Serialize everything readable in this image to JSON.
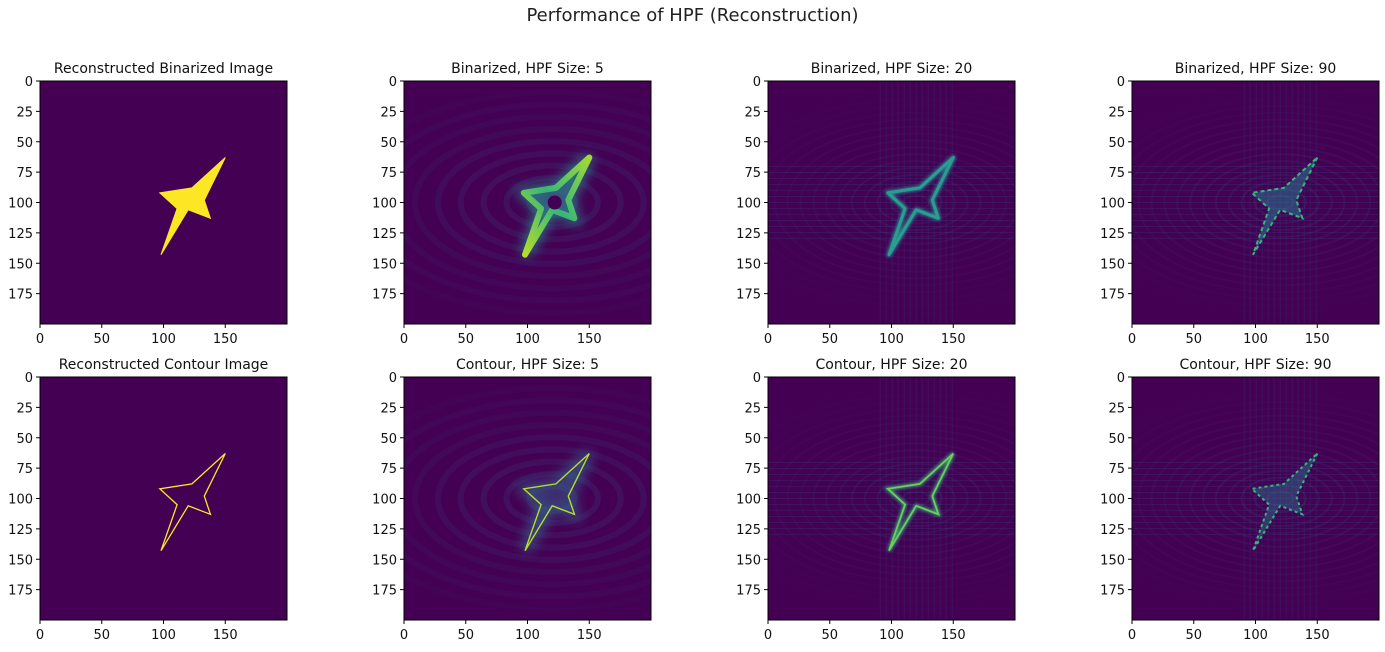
{
  "figure": {
    "suptitle": "Performance of HPF (Reconstruction)",
    "colormap": "viridis",
    "background_color": "#440154"
  },
  "chart_data": [
    {
      "type": "heatmap",
      "title": "Reconstructed Binarized Image",
      "variant": "binarized",
      "hpf_size": null,
      "xticks": [
        0,
        50,
        100,
        150
      ],
      "yticks": [
        0,
        25,
        50,
        75,
        100,
        125,
        150,
        175
      ],
      "xlim": [
        0,
        200
      ],
      "ylim": [
        200,
        0
      ],
      "shape_vertices": [
        [
          150,
          63
        ],
        [
          133,
          98
        ],
        [
          138,
          113
        ],
        [
          120,
          106
        ],
        [
          98,
          143
        ],
        [
          111,
          105
        ],
        [
          97,
          92
        ],
        [
          123,
          88
        ]
      ]
    },
    {
      "type": "heatmap",
      "title": "Binarized, HPF Size: 5",
      "variant": "binarized",
      "hpf_size": 5,
      "xticks": [
        0,
        50,
        100,
        150
      ],
      "yticks": [
        0,
        25,
        50,
        75,
        100,
        125,
        150,
        175
      ],
      "xlim": [
        0,
        200
      ],
      "ylim": [
        200,
        0
      ],
      "shape_vertices": [
        [
          150,
          63
        ],
        [
          133,
          98
        ],
        [
          138,
          113
        ],
        [
          120,
          106
        ],
        [
          98,
          143
        ],
        [
          111,
          105
        ],
        [
          97,
          92
        ],
        [
          123,
          88
        ]
      ]
    },
    {
      "type": "heatmap",
      "title": "Binarized, HPF Size: 20",
      "variant": "binarized",
      "hpf_size": 20,
      "xticks": [
        0,
        50,
        100,
        150
      ],
      "yticks": [
        0,
        25,
        50,
        75,
        100,
        125,
        150,
        175
      ],
      "xlim": [
        0,
        200
      ],
      "ylim": [
        200,
        0
      ],
      "shape_vertices": [
        [
          150,
          63
        ],
        [
          133,
          98
        ],
        [
          138,
          113
        ],
        [
          120,
          106
        ],
        [
          98,
          143
        ],
        [
          111,
          105
        ],
        [
          97,
          92
        ],
        [
          123,
          88
        ]
      ]
    },
    {
      "type": "heatmap",
      "title": "Binarized, HPF Size: 90",
      "variant": "binarized",
      "hpf_size": 90,
      "xticks": [
        0,
        50,
        100,
        150
      ],
      "yticks": [
        0,
        25,
        50,
        75,
        100,
        125,
        150,
        175
      ],
      "xlim": [
        0,
        200
      ],
      "ylim": [
        200,
        0
      ],
      "shape_vertices": [
        [
          150,
          63
        ],
        [
          133,
          98
        ],
        [
          138,
          113
        ],
        [
          120,
          106
        ],
        [
          98,
          143
        ],
        [
          111,
          105
        ],
        [
          97,
          92
        ],
        [
          123,
          88
        ]
      ]
    },
    {
      "type": "heatmap",
      "title": "Reconstructed Contour Image",
      "variant": "contour",
      "hpf_size": null,
      "xticks": [
        0,
        50,
        100,
        150
      ],
      "yticks": [
        0,
        25,
        50,
        75,
        100,
        125,
        150,
        175
      ],
      "xlim": [
        0,
        200
      ],
      "ylim": [
        200,
        0
      ],
      "shape_vertices": [
        [
          150,
          63
        ],
        [
          133,
          98
        ],
        [
          138,
          113
        ],
        [
          120,
          106
        ],
        [
          98,
          143
        ],
        [
          111,
          105
        ],
        [
          97,
          92
        ],
        [
          123,
          88
        ]
      ]
    },
    {
      "type": "heatmap",
      "title": "Contour, HPF Size: 5",
      "variant": "contour",
      "hpf_size": 5,
      "xticks": [
        0,
        50,
        100,
        150
      ],
      "yticks": [
        0,
        25,
        50,
        75,
        100,
        125,
        150,
        175
      ],
      "xlim": [
        0,
        200
      ],
      "ylim": [
        200,
        0
      ],
      "shape_vertices": [
        [
          150,
          63
        ],
        [
          133,
          98
        ],
        [
          138,
          113
        ],
        [
          120,
          106
        ],
        [
          98,
          143
        ],
        [
          111,
          105
        ],
        [
          97,
          92
        ],
        [
          123,
          88
        ]
      ]
    },
    {
      "type": "heatmap",
      "title": "Contour, HPF Size: 20",
      "variant": "contour",
      "hpf_size": 20,
      "xticks": [
        0,
        50,
        100,
        150
      ],
      "yticks": [
        0,
        25,
        50,
        75,
        100,
        125,
        150,
        175
      ],
      "xlim": [
        0,
        200
      ],
      "ylim": [
        200,
        0
      ],
      "shape_vertices": [
        [
          150,
          63
        ],
        [
          133,
          98
        ],
        [
          138,
          113
        ],
        [
          120,
          106
        ],
        [
          98,
          143
        ],
        [
          111,
          105
        ],
        [
          97,
          92
        ],
        [
          123,
          88
        ]
      ]
    },
    {
      "type": "heatmap",
      "title": "Contour, HPF Size: 90",
      "variant": "contour",
      "hpf_size": 90,
      "xticks": [
        0,
        50,
        100,
        150
      ],
      "yticks": [
        0,
        25,
        50,
        75,
        100,
        125,
        150,
        175
      ],
      "xlim": [
        0,
        200
      ],
      "ylim": [
        200,
        0
      ],
      "shape_vertices": [
        [
          150,
          63
        ],
        [
          133,
          98
        ],
        [
          138,
          113
        ],
        [
          120,
          106
        ],
        [
          98,
          143
        ],
        [
          111,
          105
        ],
        [
          97,
          92
        ],
        [
          123,
          88
        ]
      ]
    }
  ]
}
